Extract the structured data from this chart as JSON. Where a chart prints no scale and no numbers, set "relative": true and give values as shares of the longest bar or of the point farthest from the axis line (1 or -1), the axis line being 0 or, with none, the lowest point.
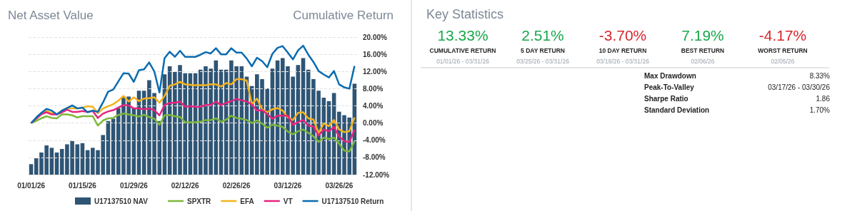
{
  "chart_data": [
    {
      "type": "bar",
      "title": "Net Asset Value",
      "relative": true,
      "legend": "bottom",
      "categories": [
        "01/01/26",
        null,
        null,
        null,
        null,
        null,
        null,
        null,
        null,
        null,
        "01/15/26",
        null,
        null,
        null,
        null,
        null,
        null,
        null,
        null,
        null,
        "01/29/26",
        null,
        null,
        null,
        null,
        null,
        null,
        null,
        null,
        null,
        "02/12/26",
        null,
        null,
        null,
        null,
        null,
        null,
        null,
        null,
        null,
        "02/26/26",
        null,
        null,
        null,
        null,
        null,
        null,
        null,
        null,
        null,
        "03/12/26",
        null,
        null,
        null,
        null,
        null,
        null,
        null,
        null,
        null,
        "03/26/26",
        null,
        null,
        null
      ],
      "series": [
        {
          "name": "U17137510 NAV",
          "color": "#2f5575",
          "values": [
            0.09,
            0.14,
            0.19,
            0.25,
            0.23,
            0.19,
            0.22,
            0.26,
            0.29,
            0.26,
            0.27,
            0.21,
            0.23,
            0.21,
            0.34,
            0.46,
            0.48,
            0.57,
            0.67,
            0.67,
            0.57,
            0.72,
            0.72,
            0.81,
            0.7,
            0.46,
            0.86,
            0.93,
            0.88,
            0.94,
            0.87,
            0.87,
            0.87,
            0.9,
            0.93,
            0.91,
            0.98,
            0.9,
            0.9,
            0.98,
            0.93,
            0.93,
            0.84,
            0.76,
            0.86,
            0.82,
            0.74,
            0.91,
            0.98,
            1.0,
            0.93,
            0.84,
            0.94,
            1.0,
            0.9,
            0.82,
            0.72,
            0.66,
            0.63,
            0.7,
            0.54,
            0.51,
            0.49,
            0.78
          ]
        }
      ]
    },
    {
      "type": "line",
      "ylabel": "Cumulative Return",
      "tick_labels": "y",
      "categories": [
        null,
        null,
        null,
        null,
        null,
        null,
        null,
        null,
        null,
        null,
        null,
        null,
        null,
        null,
        null,
        null,
        null,
        null,
        null,
        null,
        null,
        null,
        null,
        null,
        null,
        null,
        null,
        null,
        null,
        null,
        null,
        null,
        null,
        null,
        null,
        null,
        null,
        null,
        null,
        null,
        null,
        null,
        null,
        null,
        null,
        null,
        null,
        null,
        null,
        null,
        null,
        null,
        null,
        null,
        null,
        null,
        null,
        null,
        null,
        null,
        null,
        null,
        null,
        null
      ],
      "series": [
        {
          "name": "SPXTR",
          "color": "#7db83a",
          "values": [
            0,
            0.5,
            1.1,
            1.6,
            1.2,
            1.1,
            2.0,
            2.0,
            1.8,
            1.3,
            1.6,
            1.6,
            1.6,
            -0.6,
            0.6,
            1.1,
            1.2,
            1.9,
            2.2,
            2.0,
            1.8,
            1.5,
            1.9,
            1.4,
            1.0,
            -0.4,
            1.8,
            1.9,
            1.6,
            1.4,
            0.2,
            0.2,
            0.2,
            0.3,
            0.7,
            0.7,
            1.1,
            0.3,
            0.8,
            1.7,
            1.2,
            1.0,
            0.7,
            0,
            0.6,
            -0.1,
            -1.1,
            -0.4,
            -0.6,
            -0.9,
            -2.0,
            -2.6,
            -1.9,
            -1.5,
            -2.3,
            -3.1,
            -4.4,
            -3.4,
            -3.7,
            -3.4,
            -4.8,
            -6.4,
            -6.6,
            -4.2
          ]
        },
        {
          "name": "EFA",
          "color": "#f6b21c",
          "values": [
            0,
            1.1,
            2.0,
            2.8,
            2.3,
            2.0,
            2.9,
            3.5,
            3.4,
            3.4,
            3.6,
            3.9,
            3.8,
            2.3,
            3.4,
            3.9,
            4.4,
            5.2,
            6.3,
            5.0,
            6.0,
            5.1,
            5.7,
            5.8,
            6.0,
            4.7,
            6.3,
            8.7,
            9.0,
            9.6,
            9.0,
            8.9,
            8.8,
            8.8,
            8.8,
            9.0,
            9.0,
            8.5,
            9.3,
            9.0,
            10.2,
            10.2,
            9.9,
            4.4,
            5.7,
            3.2,
            2.5,
            3.2,
            3.5,
            2.9,
            1.3,
            0.7,
            2.4,
            2.5,
            1.1,
            0.8,
            -2.3,
            -0.1,
            -0.7,
            0.7,
            -1.5,
            -2.1,
            -1.9,
            1.3
          ]
        },
        {
          "name": "VT",
          "color": "#e6237e",
          "values": [
            0,
            1.0,
            2.1,
            2.5,
            2.0,
            2.0,
            2.5,
            3.1,
            2.6,
            2.6,
            2.8,
            2.6,
            2.8,
            1.2,
            2.2,
            2.7,
            3.0,
            3.6,
            4.2,
            4.1,
            3.4,
            3.4,
            3.2,
            3.4,
            3.0,
            1.8,
            4.2,
            4.7,
            4.7,
            5.0,
            3.8,
            3.9,
            3.8,
            3.8,
            4.2,
            4.2,
            5.0,
            4.2,
            4.7,
            5.1,
            5.6,
            5.3,
            5.0,
            4.3,
            2.9,
            3.0,
            2.1,
            1.0,
            1.7,
            1.7,
            1.7,
            -0.4,
            0.2,
            0.7,
            -0.6,
            -0.8,
            -2.9,
            -1.5,
            -1.9,
            -0.9,
            -3.1,
            -4.2,
            -4.4,
            -1.5
          ]
        },
        {
          "name": "U17137510 Return",
          "color": "#0a6cb0",
          "values": [
            0,
            1.3,
            2.4,
            3.3,
            2.9,
            2.0,
            2.9,
            3.5,
            4.1,
            3.4,
            3.6,
            2.5,
            2.9,
            2.6,
            4.8,
            7.3,
            7.8,
            9.7,
            11.6,
            11.5,
            9.6,
            12.3,
            12.5,
            14.1,
            12.0,
            7.1,
            15.1,
            16.6,
            15.4,
            16.8,
            15.4,
            15.4,
            15.4,
            15.9,
            16.5,
            16.2,
            17.4,
            16.0,
            16.0,
            17.4,
            16.4,
            16.4,
            15.0,
            13.2,
            15.2,
            14.4,
            13.0,
            16.1,
            17.5,
            17.9,
            16.4,
            14.8,
            16.9,
            18.0,
            15.9,
            14.2,
            12.1,
            11.3,
            10.6,
            12.1,
            9.0,
            8.3,
            8.0,
            13.3
          ]
        }
      ],
      "ylim": [
        -12,
        20
      ],
      "yticks": [
        {
          "value": -12,
          "label": "-12.00%"
        },
        {
          "value": -8,
          "label": "-8.00%"
        },
        {
          "value": -4,
          "label": "-4.00%"
        },
        {
          "value": 0,
          "label": "0.00%"
        },
        {
          "value": 4,
          "label": "4.00%"
        },
        {
          "value": 8,
          "label": "8.00%"
        },
        {
          "value": 12,
          "label": "12.00%"
        },
        {
          "value": 16,
          "label": "16.00%"
        },
        {
          "value": 20,
          "label": "20.00%"
        }
      ],
      "grid": "y",
      "legend": "bottom",
      "line_style": "solid"
    },
    {
      "type": "other",
      "title": "Key Statistics",
      "annotations": [
        "13.33%",
        "CUMULATIVE RETURN",
        "01/01/26 - 03/31/26",
        "2.51%",
        "5 DAY RETURN",
        "03/25/26 - 03/31/26",
        "-3.70%",
        "10 DAY RETURN",
        "03/18/26 - 03/31/26",
        "7.19%",
        "BEST RETURN",
        "02/06/26",
        "-4.17%",
        "WORST RETURN",
        "02/05/26",
        "Max Drawdown",
        "8.33%",
        "Peak-To-Valley",
        "03/17/26 - 03/30/26",
        "Sharpe Ratio",
        "1.86",
        "Standard Deviation",
        "1.70%"
      ],
      "colors": [
        "#1aa84b",
        "#1aa84b",
        "#d6262f",
        "#1aa84b",
        "#d6262f"
      ]
    }
  ]
}
